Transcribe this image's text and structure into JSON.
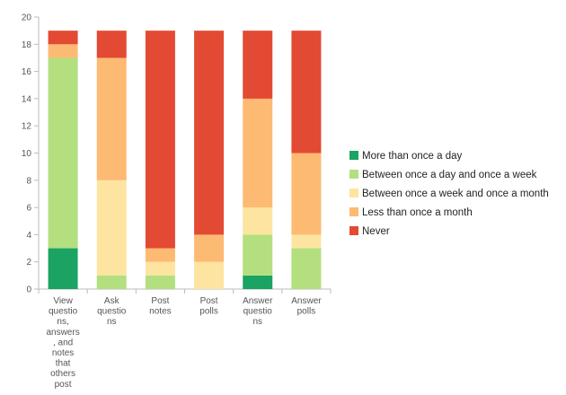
{
  "chart_data": {
    "type": "bar",
    "stacked": true,
    "title": "",
    "xlabel": "",
    "ylabel": "",
    "ylim": [
      0,
      20
    ],
    "yticks": [
      0,
      2,
      4,
      6,
      8,
      10,
      12,
      14,
      16,
      18,
      20
    ],
    "grid": false,
    "legend_position": "right",
    "categories": [
      "View questions, answers, and notes that others post",
      "Ask questions",
      "Post notes",
      "Post polls",
      "Answer questions",
      "Answer polls"
    ],
    "category_lines": [
      [
        "View",
        "questio",
        "ns,",
        "answers",
        ", and",
        "notes",
        "that",
        "others",
        "post"
      ],
      [
        "Ask",
        "questio",
        "ns"
      ],
      [
        "Post",
        "notes"
      ],
      [
        "Post",
        "polls"
      ],
      [
        "Answer",
        "questio",
        "ns"
      ],
      [
        "Answer",
        "polls"
      ]
    ],
    "series": [
      {
        "name": "More than once a day",
        "color": "#1aa363",
        "values": [
          3,
          0,
          0,
          0,
          1,
          0
        ]
      },
      {
        "name": "Between once a day and once a week",
        "color": "#b3df7f",
        "values": [
          14,
          1,
          1,
          0,
          3,
          3
        ]
      },
      {
        "name": "Between once a week and once a month",
        "color": "#fde4a0",
        "values": [
          0,
          7,
          1,
          2,
          2,
          1
        ]
      },
      {
        "name": "Less than once a month",
        "color": "#fdba72",
        "values": [
          1,
          9,
          1,
          2,
          8,
          6
        ]
      },
      {
        "name": "Never",
        "color": "#e34a33",
        "values": [
          1,
          2,
          16,
          15,
          5,
          9
        ]
      }
    ]
  }
}
